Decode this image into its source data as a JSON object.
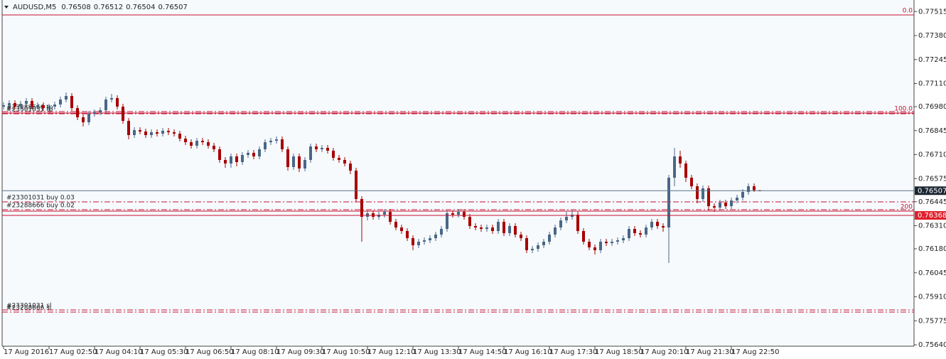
{
  "chart_data": {
    "type": "candlestick",
    "title": "AUDUSD,M5",
    "colors": {
      "up": "#4a6787",
      "down": "#a80000",
      "level": "#c8102e",
      "price_line": "#5b7288"
    },
    "open": [
      0.7698,
      0.76988,
      0.77,
      0.7698,
      0.76996,
      0.77012,
      0.7698,
      0.76988,
      0.76972,
      0.7698,
      0.76992,
      0.7702,
      0.7704,
      0.76972,
      0.7692,
      0.76892,
      0.7694,
      0.76948,
      0.7696,
      0.7702,
      0.77028,
      0.7698,
      0.769,
      0.7682,
      0.76848,
      0.7684,
      0.7682,
      0.76836,
      0.76828,
      0.76844,
      0.76836,
      0.76828,
      0.768,
      0.7678,
      0.7676,
      0.76788,
      0.7678,
      0.7676,
      0.7674,
      0.7668,
      0.7666,
      0.767,
      0.76668,
      0.76708,
      0.7672,
      0.767,
      0.7674,
      0.7678,
      0.76788,
      0.76796,
      0.7674,
      0.7664,
      0.767,
      0.76632,
      0.7668,
      0.76756,
      0.7674,
      0.76748,
      0.76732,
      0.76692,
      0.7668,
      0.7666,
      0.7662,
      0.7646,
      0.7636,
      0.7638,
      0.7636,
      0.76372,
      0.76388,
      0.76332,
      0.763,
      0.7628,
      0.7624,
      0.762,
      0.7622,
      0.76228,
      0.7624,
      0.7626,
      0.76292,
      0.7638,
      0.76372,
      0.76388,
      0.7636,
      0.76308,
      0.763,
      0.76292,
      0.763,
      0.7628,
      0.76332,
      0.76268,
      0.76308,
      0.7626,
      0.7624,
      0.76172,
      0.7618,
      0.762,
      0.7622,
      0.7626,
      0.763,
      0.7634,
      0.7636,
      0.76372,
      0.7628,
      0.7622,
      0.76188,
      0.76172,
      0.7622,
      0.76212,
      0.7622,
      0.76228,
      0.7624,
      0.76292,
      0.76268,
      0.7626,
      0.763,
      0.76332,
      0.76308,
      0.763,
      0.7658,
      0.767,
      0.7666,
      0.7658,
      0.76532,
      0.7646,
      0.7652,
      0.7642,
      0.76412,
      0.7644,
      0.7642,
      0.76452,
      0.76468,
      0.765,
      0.76532,
      0.76508
    ],
    "high": [
      0.77004,
      0.77016,
      0.77016,
      0.77012,
      0.77028,
      0.77028,
      0.77004,
      0.77004,
      0.76996,
      0.77008,
      0.77036,
      0.7706,
      0.77056,
      0.76988,
      0.76936,
      0.76956,
      0.76964,
      0.76976,
      0.77036,
      0.77052,
      0.77044,
      0.76996,
      0.76916,
      0.76864,
      0.76864,
      0.76856,
      0.76852,
      0.76852,
      0.7686,
      0.7686,
      0.76852,
      0.76844,
      0.76816,
      0.76796,
      0.76804,
      0.76804,
      0.76796,
      0.76776,
      0.76756,
      0.76696,
      0.76716,
      0.76716,
      0.76724,
      0.76736,
      0.76736,
      0.76756,
      0.76796,
      0.76804,
      0.76812,
      0.76812,
      0.76756,
      0.76716,
      0.76716,
      0.76696,
      0.76772,
      0.76772,
      0.76764,
      0.76764,
      0.76748,
      0.76708,
      0.76696,
      0.76676,
      0.76636,
      0.76476,
      0.76396,
      0.76396,
      0.76388,
      0.76404,
      0.76404,
      0.76348,
      0.76316,
      0.76296,
      0.76256,
      0.76236,
      0.76244,
      0.76256,
      0.76276,
      0.76308,
      0.76396,
      0.76396,
      0.76404,
      0.76404,
      0.76376,
      0.76324,
      0.76316,
      0.76316,
      0.76316,
      0.76348,
      0.76348,
      0.76324,
      0.76324,
      0.76276,
      0.76256,
      0.76196,
      0.76216,
      0.76236,
      0.76276,
      0.76316,
      0.76356,
      0.76388,
      0.76396,
      0.76388,
      0.76296,
      0.76236,
      0.76204,
      0.76236,
      0.76236,
      0.76236,
      0.76244,
      0.76256,
      0.76308,
      0.76308,
      0.76284,
      0.76316,
      0.76348,
      0.76348,
      0.76324,
      0.76596,
      0.76748,
      0.76732,
      0.76676,
      0.76596,
      0.76548,
      0.76536,
      0.76536,
      0.76436,
      0.76456,
      0.76456,
      0.76468,
      0.76484,
      0.76516,
      0.76548,
      0.76548,
      0.76512
    ],
    "low": [
      0.76964,
      0.76972,
      0.76964,
      0.76964,
      0.7698,
      0.76964,
      0.76964,
      0.76956,
      0.76956,
      0.76964,
      0.76976,
      0.77004,
      0.76956,
      0.76904,
      0.76868,
      0.76876,
      0.76924,
      0.76932,
      0.76944,
      0.77004,
      0.76964,
      0.76884,
      0.76796,
      0.76804,
      0.76824,
      0.76804,
      0.76804,
      0.76812,
      0.76812,
      0.7682,
      0.76812,
      0.76784,
      0.76764,
      0.76744,
      0.76744,
      0.76764,
      0.76744,
      0.76724,
      0.76664,
      0.76636,
      0.76636,
      0.76644,
      0.76652,
      0.76692,
      0.76684,
      0.76684,
      0.76724,
      0.76764,
      0.76772,
      0.76724,
      0.7662,
      0.76624,
      0.76612,
      0.76616,
      0.76664,
      0.76724,
      0.76724,
      0.76716,
      0.76676,
      0.76664,
      0.76644,
      0.766,
      0.76444,
      0.7622,
      0.7634,
      0.76344,
      0.76344,
      0.76356,
      0.76316,
      0.76284,
      0.76264,
      0.76224,
      0.76172,
      0.76184,
      0.76204,
      0.76212,
      0.76224,
      0.76244,
      0.76276,
      0.76356,
      0.76356,
      0.76344,
      0.76292,
      0.76284,
      0.76276,
      0.76276,
      0.76264,
      0.76264,
      0.76252,
      0.76252,
      0.76244,
      0.76224,
      0.76156,
      0.76156,
      0.76164,
      0.76184,
      0.76204,
      0.76244,
      0.76284,
      0.76324,
      0.76344,
      0.76264,
      0.76204,
      0.76172,
      0.76148,
      0.76156,
      0.76196,
      0.76196,
      0.76204,
      0.76212,
      0.76224,
      0.76252,
      0.76244,
      0.76244,
      0.76284,
      0.76292,
      0.76276,
      0.761,
      0.76532,
      0.76636,
      0.76556,
      0.76516,
      0.76436,
      0.76444,
      0.76396,
      0.76388,
      0.76396,
      0.76404,
      0.76404,
      0.76436,
      0.76452,
      0.76484,
      0.765,
      0.76504
    ],
    "close": [
      0.76988,
      0.77,
      0.7698,
      0.76996,
      0.77012,
      0.7698,
      0.76988,
      0.76972,
      0.7698,
      0.76992,
      0.7702,
      0.7704,
      0.76972,
      0.7692,
      0.76892,
      0.7694,
      0.76948,
      0.7696,
      0.7702,
      0.77028,
      0.7698,
      0.769,
      0.7682,
      0.76848,
      0.7684,
      0.7682,
      0.76836,
      0.76828,
      0.76844,
      0.76836,
      0.76828,
      0.768,
      0.7678,
      0.7676,
      0.76788,
      0.7678,
      0.7676,
      0.7674,
      0.7668,
      0.7666,
      0.767,
      0.76668,
      0.76708,
      0.7672,
      0.767,
      0.7674,
      0.7678,
      0.76788,
      0.76796,
      0.7674,
      0.7664,
      0.767,
      0.76632,
      0.7668,
      0.76756,
      0.7674,
      0.76748,
      0.76732,
      0.76692,
      0.7668,
      0.7666,
      0.7662,
      0.7646,
      0.7636,
      0.7638,
      0.7636,
      0.76372,
      0.76388,
      0.76332,
      0.763,
      0.7628,
      0.7624,
      0.762,
      0.7622,
      0.76228,
      0.7624,
      0.7626,
      0.76292,
      0.7638,
      0.76372,
      0.76388,
      0.7636,
      0.76308,
      0.763,
      0.76292,
      0.763,
      0.7628,
      0.76332,
      0.76268,
      0.76308,
      0.7626,
      0.7624,
      0.76172,
      0.7618,
      0.762,
      0.7622,
      0.7626,
      0.763,
      0.7634,
      0.7636,
      0.76372,
      0.7628,
      0.7622,
      0.76188,
      0.76172,
      0.7622,
      0.76212,
      0.7622,
      0.76228,
      0.7624,
      0.76292,
      0.76268,
      0.7626,
      0.763,
      0.76332,
      0.76308,
      0.763,
      0.7658,
      0.767,
      0.7666,
      0.7658,
      0.76532,
      0.7646,
      0.7652,
      0.7642,
      0.76412,
      0.7644,
      0.7642,
      0.76452,
      0.76468,
      0.765,
      0.76532,
      0.7651,
      0.76507
    ],
    "xlim": [
      -0.25,
      160.125
    ],
    "xticks": [
      {
        "value": 0,
        "label": "17 Aug 2016"
      },
      {
        "value": 8,
        "label": "17 Aug 02:50"
      },
      {
        "value": 16,
        "label": "17 Aug 04:10"
      },
      {
        "value": 24,
        "label": "17 Aug 05:30"
      },
      {
        "value": 32,
        "label": "17 Aug 06:50"
      },
      {
        "value": 40,
        "label": "17 Aug 08:10"
      },
      {
        "value": 48,
        "label": "17 Aug 09:30"
      },
      {
        "value": 56,
        "label": "17 Aug 10:50"
      },
      {
        "value": 64,
        "label": "17 Aug 12:10"
      },
      {
        "value": 72,
        "label": "17 Aug 13:30"
      },
      {
        "value": 80,
        "label": "17 Aug 14:50"
      },
      {
        "value": 88,
        "label": "17 Aug 16:10"
      },
      {
        "value": 96,
        "label": "17 Aug 17:30"
      },
      {
        "value": 104,
        "label": "17 Aug 18:50"
      },
      {
        "value": 112,
        "label": "17 Aug 20:10"
      },
      {
        "value": 120,
        "label": "17 Aug 21:30"
      },
      {
        "value": 128,
        "label": "17 Aug 22:50"
      }
    ],
    "ylim": [
      0.75632,
      0.7758
    ],
    "yticks": [
      {
        "value": 0.77515,
        "label": "0.77515"
      },
      {
        "value": 0.7738,
        "label": "0.77380"
      },
      {
        "value": 0.77245,
        "label": "0.77245"
      },
      {
        "value": 0.7711,
        "label": "0.77110"
      },
      {
        "value": 0.7698,
        "label": "0.76980"
      },
      {
        "value": 0.76845,
        "label": "0.76845"
      },
      {
        "value": 0.7671,
        "label": "0.76710"
      },
      {
        "value": 0.76575,
        "label": "0.76575"
      },
      {
        "value": 0.76445,
        "label": "0.76445"
      },
      {
        "value": 0.7631,
        "label": "0.76310"
      },
      {
        "value": 0.7618,
        "label": "0.76180"
      },
      {
        "value": 0.76045,
        "label": "0.76045"
      },
      {
        "value": 0.7591,
        "label": "0.75910"
      },
      {
        "value": 0.75775,
        "label": "0.75775"
      },
      {
        "value": 0.7564,
        "label": "0.75640"
      }
    ],
    "fib_levels": [
      {
        "label": "0.0",
        "value": 0.77496
      },
      {
        "label": "100.0",
        "value": 0.76944
      },
      {
        "label": "200",
        "value": 0.76392
      }
    ],
    "orders": [
      {
        "label": "#23288666 tp",
        "value": 0.76952
      },
      {
        "label": "#23301031 tp",
        "value": 0.7694
      },
      {
        "label": "#23301031 buy 0.03",
        "value": 0.76444
      },
      {
        "label": "#23288666 buy 0.02",
        "value": 0.764
      },
      {
        "label": "#23301031 sl",
        "value": 0.75836
      },
      {
        "label": "#23288666 sl",
        "value": 0.75824
      }
    ],
    "marker_price": 0.76368
  }
}
